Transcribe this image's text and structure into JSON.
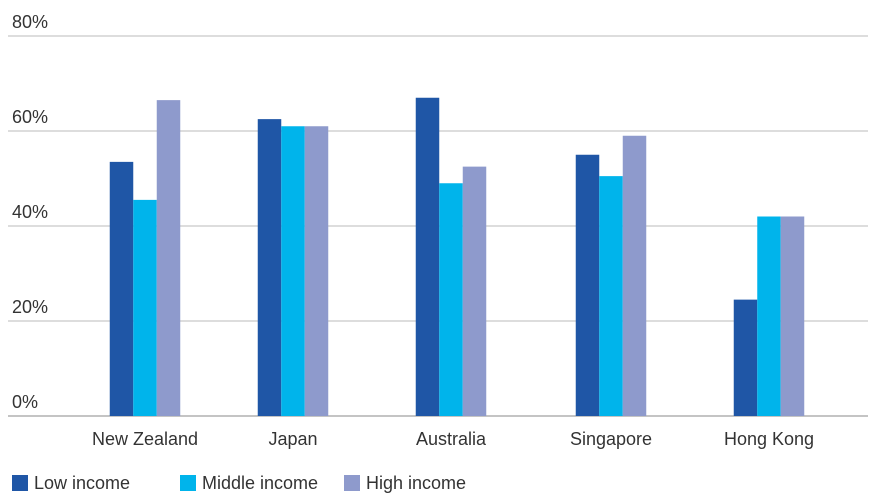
{
  "chart_data": {
    "type": "bar",
    "title": "",
    "xlabel": "",
    "ylabel": "",
    "categories": [
      "New Zealand",
      "Japan",
      "Australia",
      "Singapore",
      "Hong Kong"
    ],
    "series": [
      {
        "name": "Low income",
        "color": "#1f56a6",
        "values": [
          53.5,
          62.5,
          67,
          55,
          24.5
        ]
      },
      {
        "name": "Middle income",
        "color": "#00b4eb",
        "values": [
          45.5,
          61,
          49,
          50.5,
          42
        ]
      },
      {
        "name": "High income",
        "color": "#8e9acc",
        "values": [
          66.5,
          61,
          52.5,
          59,
          42
        ]
      }
    ],
    "ylim": [
      0,
      80
    ],
    "yticks": [
      0,
      20,
      40,
      60,
      80
    ],
    "ytick_labels": [
      "0%",
      "20%",
      "40%",
      "60%",
      "80%"
    ],
    "grid": true,
    "legend_position": "bottom-left"
  }
}
